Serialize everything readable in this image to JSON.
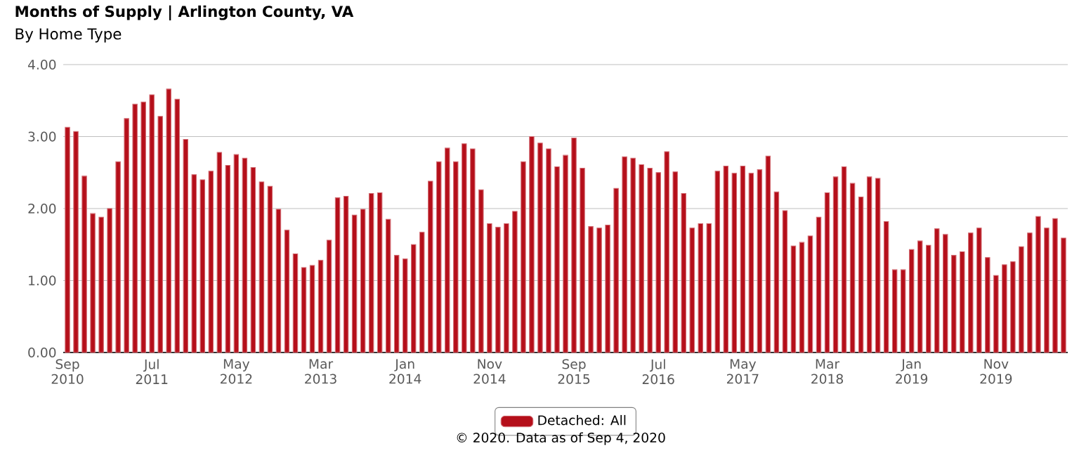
{
  "chart_data": {
    "type": "bar",
    "title": "Months of Supply | Arlington County, VA",
    "subtitle": "By Home Type",
    "categories": [
      "Sep 2010",
      null,
      null,
      null,
      null,
      null,
      null,
      null,
      null,
      null,
      "Jul 2011",
      null,
      null,
      null,
      null,
      null,
      null,
      null,
      null,
      null,
      "May 2012",
      null,
      null,
      null,
      null,
      null,
      null,
      null,
      null,
      null,
      "Mar 2013",
      null,
      null,
      null,
      null,
      null,
      null,
      null,
      null,
      null,
      "Jan 2014",
      null,
      null,
      null,
      null,
      null,
      null,
      null,
      null,
      null,
      "Nov 2014",
      null,
      null,
      null,
      null,
      null,
      null,
      null,
      null,
      null,
      "Sep 2015",
      null,
      null,
      null,
      null,
      null,
      null,
      null,
      null,
      null,
      "Jul 2016",
      null,
      null,
      null,
      null,
      null,
      null,
      null,
      null,
      null,
      "May 2017",
      null,
      null,
      null,
      null,
      null,
      null,
      null,
      null,
      null,
      "Mar 2018",
      null,
      null,
      null,
      null,
      null,
      null,
      null,
      null,
      null,
      "Jan 2019",
      null,
      null,
      null,
      null,
      null,
      null,
      null,
      null,
      null,
      "Nov 2019",
      null,
      null,
      null,
      null,
      null,
      null,
      null,
      null
    ],
    "series": [
      {
        "name": "Detached: All",
        "color": "#b50f1a",
        "values": [
          3.13,
          3.07,
          2.45,
          1.93,
          1.88,
          2.0,
          2.65,
          3.25,
          3.45,
          3.48,
          3.58,
          3.28,
          3.66,
          3.52,
          2.96,
          2.47,
          2.4,
          2.52,
          2.78,
          2.6,
          2.75,
          2.7,
          2.57,
          2.37,
          2.31,
          1.99,
          1.7,
          1.37,
          1.18,
          1.21,
          1.28,
          1.56,
          2.15,
          2.17,
          1.91,
          1.99,
          2.21,
          2.22,
          1.85,
          1.35,
          1.3,
          1.5,
          1.67,
          2.38,
          2.65,
          2.84,
          2.65,
          2.9,
          2.83,
          2.26,
          1.79,
          1.74,
          1.79,
          1.96,
          2.65,
          3.0,
          2.91,
          2.83,
          2.58,
          2.74,
          2.98,
          2.56,
          1.75,
          1.73,
          1.77,
          2.28,
          2.72,
          2.7,
          2.61,
          2.56,
          2.5,
          2.79,
          2.51,
          2.21,
          1.73,
          1.79,
          1.79,
          2.52,
          2.59,
          2.49,
          2.59,
          2.49,
          2.54,
          2.73,
          2.23,
          1.97,
          1.48,
          1.53,
          1.62,
          1.88,
          2.22,
          2.44,
          2.58,
          2.35,
          2.16,
          2.44,
          2.42,
          1.82,
          1.15,
          1.15,
          1.43,
          1.55,
          1.49,
          1.72,
          1.64,
          1.35,
          1.4,
          1.66,
          1.73,
          1.32,
          1.07,
          1.22,
          1.26,
          1.47,
          1.66,
          1.89,
          1.73,
          1.86,
          1.59
        ]
      }
    ],
    "ylim": [
      0,
      4
    ],
    "yticks": [
      {
        "value": 0,
        "label": "0.00"
      },
      {
        "value": 1,
        "label": "1.00"
      },
      {
        "value": 2,
        "label": "2.00"
      },
      {
        "value": 3,
        "label": "3.00"
      },
      {
        "value": 4,
        "label": "4.00"
      }
    ],
    "grid": "y",
    "legend": "bottom",
    "annotations": [
      "© 2020. Data as of Sep 4, 2020"
    ]
  }
}
